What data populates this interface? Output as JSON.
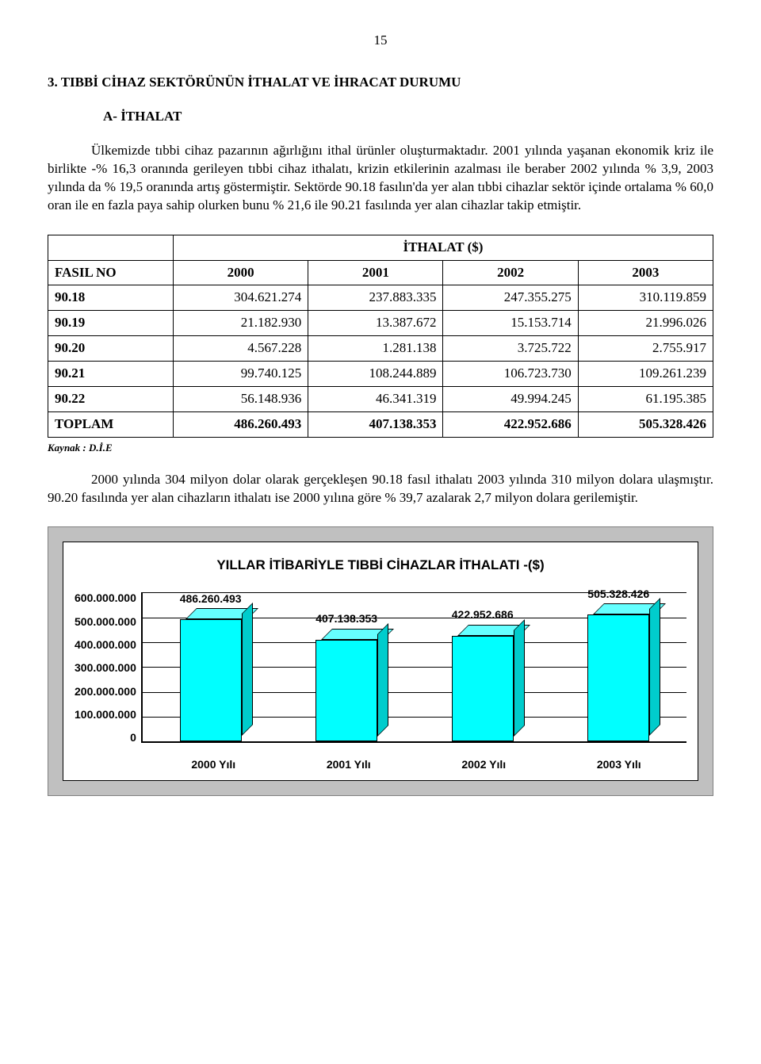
{
  "page_number": "15",
  "section_heading": "3. TIBBİ CİHAZ SEKTÖRÜNÜN İTHALAT VE İHRACAT DURUMU",
  "subheading": "A- İTHALAT",
  "paragraphs": {
    "p1": "Ülkemizde tıbbi cihaz pazarının ağırlığını ithal ürünler oluşturmaktadır. 2001 yılında yaşanan ekonomik kriz ile birlikte -% 16,3 oranında gerileyen tıbbi cihaz ithalatı, krizin etkilerinin azalması ile beraber 2002 yılında % 3,9, 2003 yılında da % 19,5 oranında artış göstermiştir. Sektörde 90.18 fasılın'da yer alan tıbbi cihazlar sektör içinde  ortalama % 60,0 oran ile en fazla paya sahip olurken bunu % 21,6 ile 90.21 fasılında yer alan cihazlar takip etmiştir.",
    "p2": "2000 yılında 304 milyon dolar olarak gerçekleşen 90.18 fasıl ithalatı 2003 yılında 310 milyon dolara ulaşmıştır. 90.20 fasılında yer alan cihazların ithalatı ise 2000 yılına göre % 39,7 azalarak 2,7 milyon dolara gerilemiştir."
  },
  "table": {
    "title": "İTHALAT ($)",
    "headers": [
      "FASIL NO",
      "2000",
      "2001",
      "2002",
      "2003"
    ],
    "rows": [
      [
        "90.18",
        "304.621.274",
        "237.883.335",
        "247.355.275",
        "310.119.859"
      ],
      [
        "90.19",
        "21.182.930",
        "13.387.672",
        "15.153.714",
        "21.996.026"
      ],
      [
        "90.20",
        "4.567.228",
        "1.281.138",
        "3.725.722",
        "2.755.917"
      ],
      [
        "90.21",
        "99.740.125",
        "108.244.889",
        "106.723.730",
        "109.261.239"
      ],
      [
        "90.22",
        "56.148.936",
        "46.341.319",
        "49.994.245",
        "61.195.385"
      ]
    ],
    "total_row": [
      "TOPLAM",
      "486.260.493",
      "407.138.353",
      "422.952.686",
      "505.328.426"
    ],
    "source": "Kaynak : D.İ.E"
  },
  "chart": {
    "title": "YILLAR İTİBARİYLE TIBBİ  CİHAZLAR İTHALATI -($)",
    "y_ticks": [
      "600.000.000",
      "500.000.000",
      "400.000.000",
      "300.000.000",
      "200.000.000",
      "100.000.000",
      "0"
    ],
    "y_max": 600000000,
    "bar_color": "#00ffff",
    "background": "#c0c0c0",
    "categories": [
      "2000 Yılı",
      "2001 Yılı",
      "2002 Yılı",
      "2003 Yılı"
    ],
    "values": [
      486260493,
      407138353,
      422952686,
      505328426
    ],
    "value_labels": [
      "486.260.493",
      "407.138.353",
      "422.952.686",
      "505.328.426"
    ]
  }
}
